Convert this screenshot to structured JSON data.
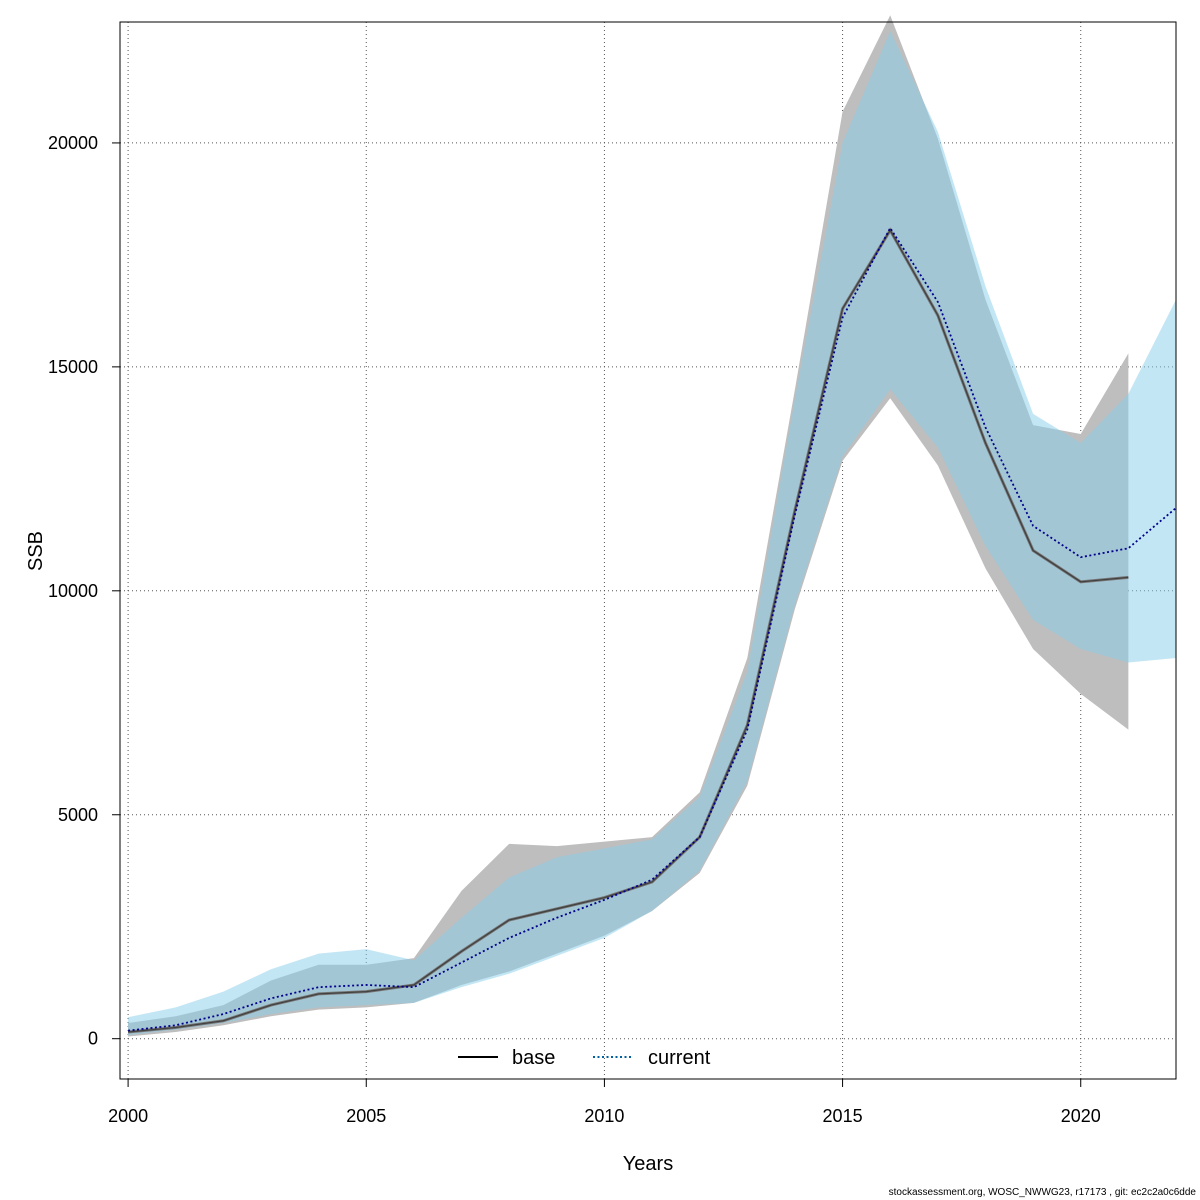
{
  "chart_data": {
    "type": "line",
    "xlabel": "Years",
    "ylabel": "SSB",
    "xlim": [
      1999.83,
      2022.0
    ],
    "ylim": [
      -900,
      22700
    ],
    "x_ticks": [
      2000,
      2005,
      2010,
      2015,
      2020
    ],
    "y_ticks": [
      0,
      5000,
      10000,
      15000,
      20000
    ],
    "grid": true,
    "legend_position": "bottom",
    "series": [
      {
        "name": "base",
        "line_style": "solid",
        "color": "#000000",
        "band_color": "#bebebe",
        "x": [
          2000,
          2001,
          2002,
          2003,
          2004,
          2005,
          2006,
          2007,
          2008,
          2009,
          2010,
          2011,
          2012,
          2013,
          2014,
          2015,
          2016,
          2017,
          2018,
          2019,
          2020,
          2021
        ],
        "values": [
          150,
          250,
          400,
          750,
          1000,
          1050,
          1200,
          1950,
          2650,
          2900,
          3150,
          3500,
          4500,
          7000,
          11800,
          16300,
          18050,
          16150,
          13300,
          10900,
          10200,
          10300
        ],
        "lower": [
          50,
          150,
          300,
          500,
          650,
          700,
          800,
          1200,
          1500,
          1900,
          2300,
          2850,
          3700,
          5650,
          9600,
          12900,
          14300,
          12800,
          10500,
          8700,
          7700,
          6900
        ],
        "upper": [
          350,
          500,
          750,
          1300,
          1650,
          1650,
          1800,
          3300,
          4350,
          4300,
          4400,
          4500,
          5500,
          8500,
          14500,
          20700,
          22850,
          20100,
          16500,
          13700,
          13500,
          15300
        ]
      },
      {
        "name": "current",
        "line_style": "dotted",
        "color": "#00008b",
        "band_color": "#87ceeb",
        "x": [
          2000,
          2001,
          2002,
          2003,
          2004,
          2005,
          2006,
          2007,
          2008,
          2009,
          2010,
          2011,
          2012,
          2013,
          2014,
          2015,
          2016,
          2017,
          2018,
          2019,
          2020,
          2021,
          2022
        ],
        "values": [
          180,
          300,
          550,
          900,
          1150,
          1200,
          1150,
          1700,
          2250,
          2700,
          3100,
          3550,
          4500,
          6900,
          11700,
          16100,
          18100,
          16450,
          13650,
          11450,
          10750,
          10950,
          11850
        ],
        "lower": [
          80,
          200,
          350,
          550,
          700,
          750,
          800,
          1150,
          1450,
          1850,
          2250,
          2850,
          3750,
          5750,
          9700,
          13000,
          14500,
          13200,
          11000,
          9350,
          8700,
          8400,
          8500
        ],
        "upper": [
          480,
          700,
          1050,
          1550,
          1900,
          2000,
          1750,
          2700,
          3600,
          4050,
          4250,
          4450,
          5400,
          8200,
          14300,
          20000,
          22500,
          20250,
          16800,
          13950,
          13300,
          14400,
          16500
        ]
      }
    ]
  },
  "footer": {
    "text": "stockassessment.org, WOSC_NWWG23, r17173 , git: ec2c2a0c6dde"
  }
}
